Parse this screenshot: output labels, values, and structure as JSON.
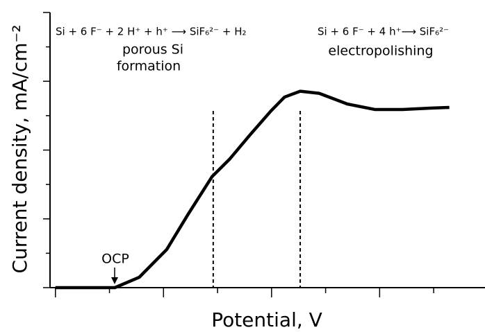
{
  "chart_data": {
    "type": "line",
    "xlabel": "Potential, V",
    "ylabel": "Current density, mA/cm⁻²",
    "xlim": [
      -0.1,
      7.95
    ],
    "ylim": [
      0,
      8
    ],
    "xticks": [
      0,
      1,
      2,
      3,
      4,
      5,
      6,
      7
    ],
    "yticks": [
      0,
      1,
      2,
      3,
      4,
      5,
      6,
      7,
      8
    ],
    "x": [
      0,
      1.1,
      1.55,
      2.06,
      2.45,
      2.9,
      3.22,
      3.6,
      3.99,
      4.24,
      4.53,
      4.88,
      5.4,
      5.91,
      6.42,
      6.94,
      7.29
    ],
    "series": [
      {
        "color": "#000000",
        "values": [
          0,
          0,
          0.3,
          1.11,
          2.12,
          3.23,
          3.73,
          4.44,
          5.14,
          5.54,
          5.71,
          5.65,
          5.34,
          5.18,
          5.18,
          5.22,
          5.24
        ]
      }
    ],
    "vlines": [
      2.92,
      4.53
    ],
    "annotations": {
      "reaction_left": "Si + 6 F⁻ + 2 H⁺ + h⁺ ⟶ SiF₆²⁻ + H₂",
      "reaction_right": "Si + 6 F⁻ + 4 h⁺⟶ SiF₆²⁻",
      "porous_line1": "porous Si",
      "porous_line2": "formation",
      "electropolishing": "electropolishing",
      "ocp": "OCP"
    }
  }
}
